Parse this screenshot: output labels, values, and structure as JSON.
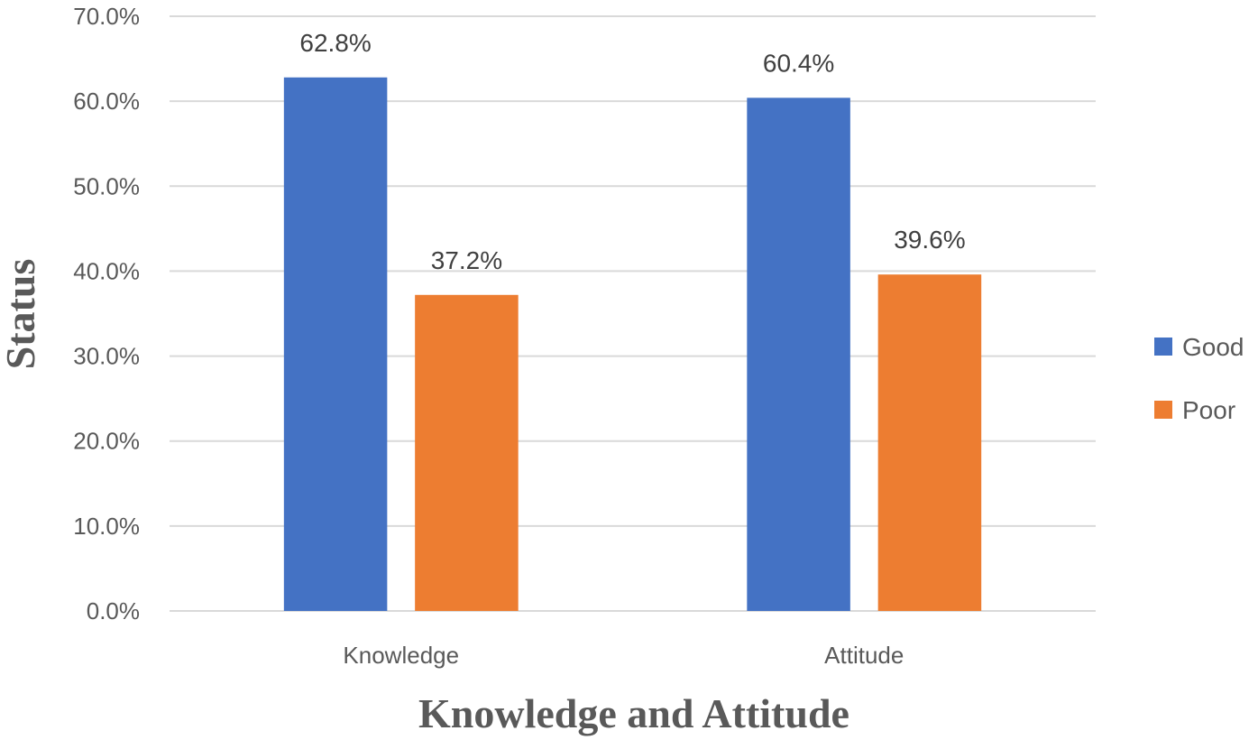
{
  "chart_data": {
    "type": "bar",
    "title": "",
    "xlabel": "Knowledge and Attitude",
    "ylabel": "Status",
    "categories": [
      "Knowledge",
      "Attitude"
    ],
    "series": [
      {
        "name": "Good",
        "values": [
          62.8,
          60.4
        ],
        "color": "#4472c4"
      },
      {
        "name": "Poor",
        "values": [
          37.2,
          39.6
        ],
        "color": "#ed7d31"
      }
    ],
    "data_labels": [
      [
        "62.8%",
        "60.4%"
      ],
      [
        "37.2%",
        "39.6%"
      ]
    ],
    "ylim": [
      0,
      70
    ],
    "yticks": [
      "0.0%",
      "10.0%",
      "20.0%",
      "30.0%",
      "40.0%",
      "50.0%",
      "60.0%",
      "70.0%"
    ],
    "grid": true,
    "legend_position": "right"
  }
}
